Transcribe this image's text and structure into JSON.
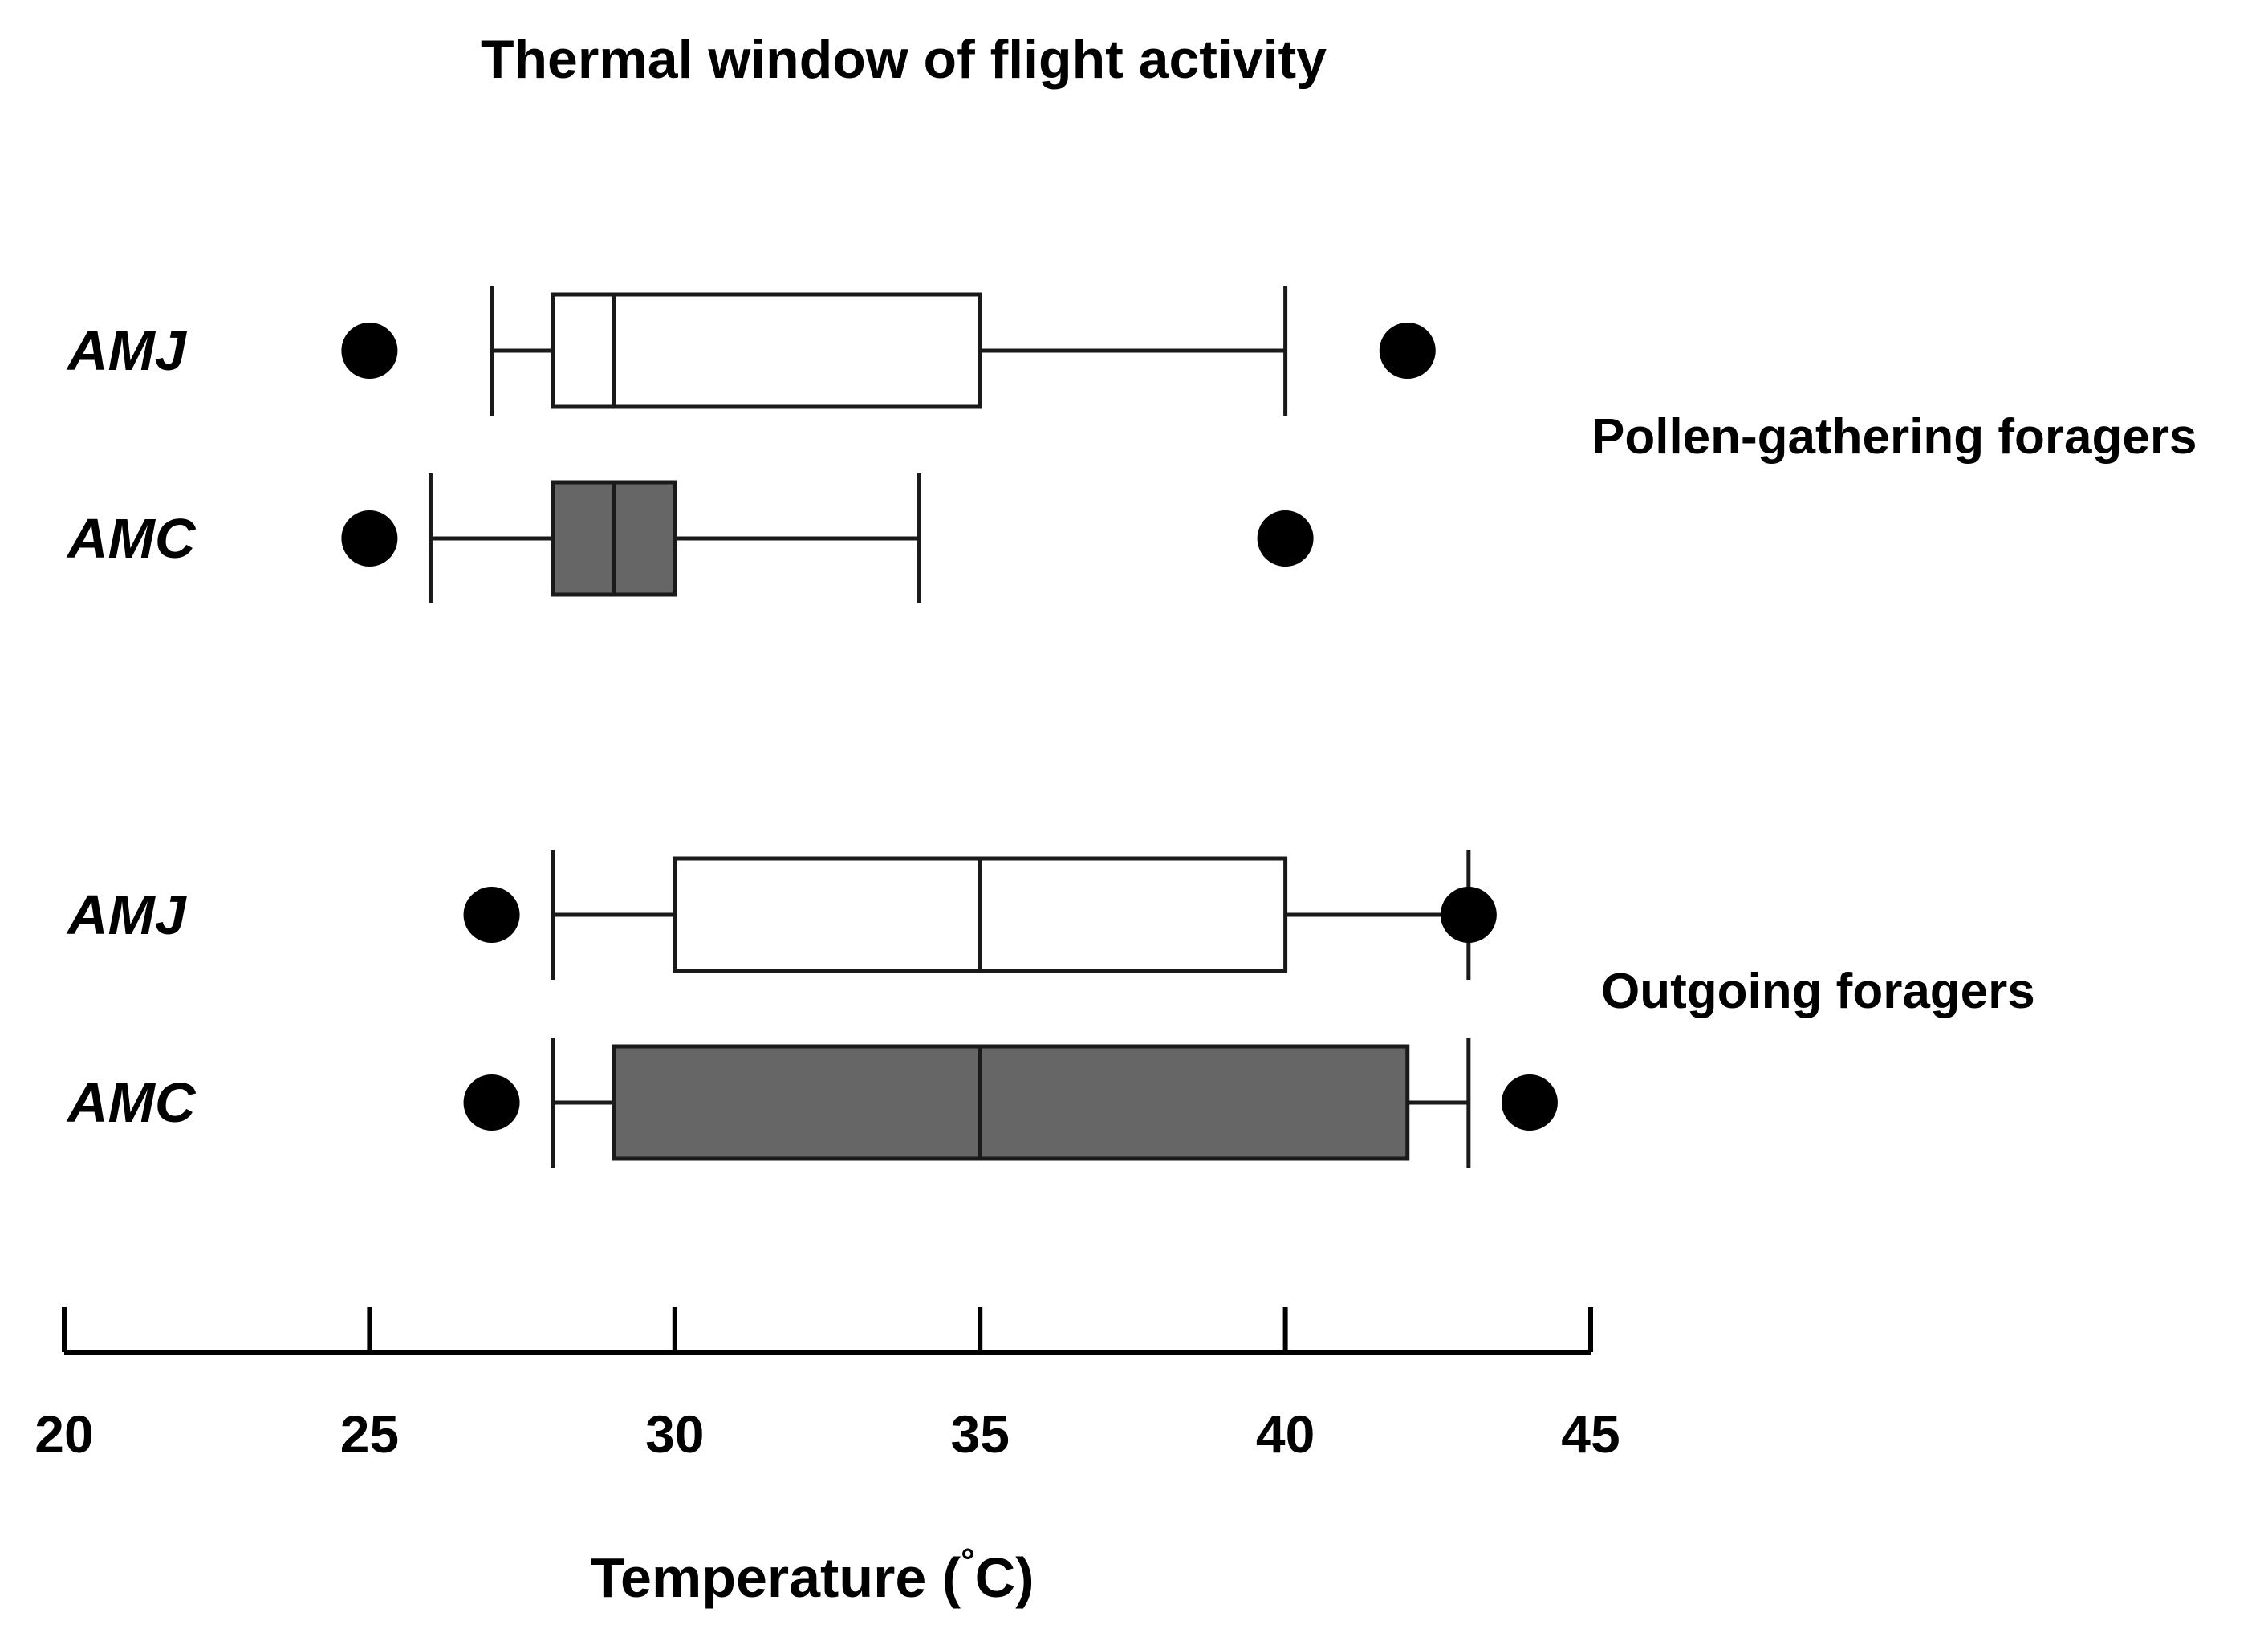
{
  "chart_data": {
    "type": "boxplot",
    "orientation": "horizontal",
    "title": "Thermal window of flight activity",
    "xlabel": "Temperature (°C)",
    "xlabel_main": "Temperature (",
    "xlabel_degree": "°",
    "xlabel_unit": "C)",
    "xlim": [
      20,
      45
    ],
    "xticks": [
      20,
      25,
      30,
      35,
      40,
      45
    ],
    "xtick_labels": [
      "20",
      "25",
      "30",
      "35",
      "40",
      "45"
    ],
    "grid": false,
    "colors": {
      "AMJ": "#ffffff",
      "AMC": "#666666",
      "line": "#1a1a1a",
      "outlier": "#000000"
    },
    "groups": [
      {
        "label": "Pollen-gathering foragers",
        "boxes": [
          {
            "category": "AMJ",
            "whisker_low": 27,
            "q1": 28,
            "median": 29,
            "q3": 35,
            "whisker_high": 40,
            "outliers": [
              25,
              42
            ]
          },
          {
            "category": "AMC",
            "whisker_low": 26,
            "q1": 28,
            "median": 29,
            "q3": 30,
            "whisker_high": 34,
            "outliers": [
              25,
              40
            ]
          }
        ]
      },
      {
        "label": "Outgoing foragers",
        "boxes": [
          {
            "category": "AMJ",
            "whisker_low": 28,
            "q1": 30,
            "median": 35,
            "q3": 40,
            "whisker_high": 43,
            "outliers": [
              27,
              43
            ]
          },
          {
            "category": "AMC",
            "whisker_low": 28,
            "q1": 29,
            "median": 35,
            "q3": 42,
            "whisker_high": 43,
            "outliers": [
              27,
              44
            ]
          }
        ]
      }
    ]
  }
}
